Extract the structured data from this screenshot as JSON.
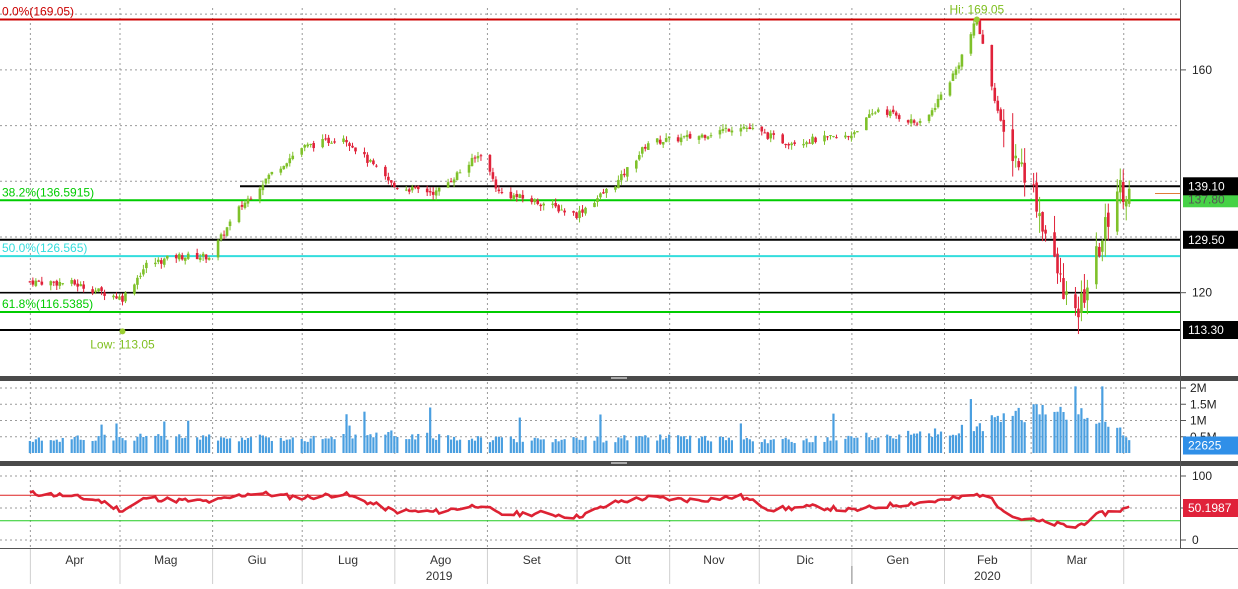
{
  "chart_data": [
    {
      "type": "candlestick",
      "name": "price",
      "x_labels": [
        "Apr",
        "Mag",
        "Giu",
        "Lug",
        "Ago",
        "Set",
        "Ott",
        "Nov",
        "Dic",
        "Gen",
        "Feb",
        "Mar"
      ],
      "year_labels": [
        "2019",
        "2020"
      ],
      "ylim": [
        110,
        172
      ],
      "y_ticks": [
        120,
        160
      ],
      "high": {
        "label": "Hi: 169.05",
        "value": 169.05
      },
      "low": {
        "label": "Low: 113.05",
        "value": 113.05
      },
      "fib_levels": [
        {
          "label": "0.0%(169.05)",
          "value": 169.05,
          "color": "#cc0000"
        },
        {
          "label": "38.2%(136.5915)",
          "value": 136.5915,
          "color": "#00cc00"
        },
        {
          "label": "50.0%(126.565)",
          "value": 126.565,
          "color": "#33dddd"
        },
        {
          "label": "61.8%(116.5385)",
          "value": 116.5385,
          "color": "#00cc00"
        }
      ],
      "horizontal_lines": [
        {
          "label": "139.10",
          "value": 139.1
        },
        {
          "label": "129.50",
          "value": 129.5
        },
        {
          "label": "113.30",
          "value": 113.3
        }
      ],
      "hidden_price_label": "137.80",
      "close_trend": [
        {
          "x": "2019-04-01",
          "y": 122
        },
        {
          "x": "2019-04-15",
          "y": 121.7
        },
        {
          "x": "2019-05-02",
          "y": 119
        },
        {
          "x": "2019-05-10",
          "y": 125
        },
        {
          "x": "2019-05-20",
          "y": 126.5
        },
        {
          "x": "2019-05-31",
          "y": 126.5
        },
        {
          "x": "2019-06-10",
          "y": 135
        },
        {
          "x": "2019-06-20",
          "y": 141
        },
        {
          "x": "2019-07-01",
          "y": 146
        },
        {
          "x": "2019-07-15",
          "y": 148
        },
        {
          "x": "2019-08-01",
          "y": 139
        },
        {
          "x": "2019-08-15",
          "y": 138
        },
        {
          "x": "2019-08-30",
          "y": 145
        },
        {
          "x": "2019-09-05",
          "y": 138
        },
        {
          "x": "2019-09-20",
          "y": 136
        },
        {
          "x": "2019-10-01",
          "y": 134
        },
        {
          "x": "2019-10-15",
          "y": 140
        },
        {
          "x": "2019-10-25",
          "y": 147
        },
        {
          "x": "2019-11-10",
          "y": 148
        },
        {
          "x": "2019-11-25",
          "y": 150
        },
        {
          "x": "2019-12-10",
          "y": 147
        },
        {
          "x": "2019-12-31",
          "y": 148
        },
        {
          "x": "2020-01-10",
          "y": 153
        },
        {
          "x": "2020-01-25",
          "y": 150
        },
        {
          "x": "2020-02-05",
          "y": 160
        },
        {
          "x": "2020-02-12",
          "y": 169
        },
        {
          "x": "2020-02-21",
          "y": 148
        },
        {
          "x": "2020-03-01",
          "y": 140
        },
        {
          "x": "2020-03-09",
          "y": 125
        },
        {
          "x": "2020-03-16",
          "y": 115
        },
        {
          "x": "2020-03-24",
          "y": 128
        },
        {
          "x": "2020-03-30",
          "y": 139
        },
        {
          "x": "2020-04-03",
          "y": 138
        }
      ]
    },
    {
      "type": "bar",
      "name": "volume",
      "y_ticks": [
        {
          "label": "0.5M",
          "value": 500000
        },
        {
          "label": "1M",
          "value": 1000000
        },
        {
          "label": "1.5M",
          "value": 1500000
        },
        {
          "label": "2M",
          "value": 2000000
        }
      ],
      "ylim": [
        0,
        2200000
      ],
      "last_value_label": "22625",
      "last_value_color": "#2f8fe8",
      "bar_color": "#4a9fe0",
      "level_trend": [
        {
          "x": "2019-04-01",
          "y": 380000
        },
        {
          "x": "2019-05-01",
          "y": 500000
        },
        {
          "x": "2019-06-01",
          "y": 470000
        },
        {
          "x": "2019-07-01",
          "y": 450000
        },
        {
          "x": "2019-08-01",
          "y": 560000
        },
        {
          "x": "2019-09-01",
          "y": 440000
        },
        {
          "x": "2019-10-01",
          "y": 420000
        },
        {
          "x": "2019-11-01",
          "y": 470000
        },
        {
          "x": "2019-12-01",
          "y": 360000
        },
        {
          "x": "2020-01-01",
          "y": 480000
        },
        {
          "x": "2020-02-01",
          "y": 620000
        },
        {
          "x": "2020-02-20",
          "y": 1000000
        },
        {
          "x": "2020-03-05",
          "y": 1400000
        },
        {
          "x": "2020-03-20",
          "y": 1300000
        },
        {
          "x": "2020-04-03",
          "y": 500000
        }
      ]
    },
    {
      "type": "line",
      "name": "RSI",
      "y_ticks": [
        0,
        50,
        100
      ],
      "ylim": [
        -5,
        110
      ],
      "ref_lines": [
        {
          "value": 70,
          "color": "#dd2222"
        },
        {
          "value": 30,
          "color": "#22cc22"
        }
      ],
      "last_value_label": "50.1987",
      "line_color": "#dd2233",
      "values": [
        {
          "x": "2019-04-01",
          "y": 73
        },
        {
          "x": "2019-04-12",
          "y": 70
        },
        {
          "x": "2019-04-24",
          "y": 62
        },
        {
          "x": "2019-05-02",
          "y": 46
        },
        {
          "x": "2019-05-10",
          "y": 66
        },
        {
          "x": "2019-05-20",
          "y": 62
        },
        {
          "x": "2019-06-01",
          "y": 60
        },
        {
          "x": "2019-06-15",
          "y": 74
        },
        {
          "x": "2019-07-01",
          "y": 66
        },
        {
          "x": "2019-07-15",
          "y": 72
        },
        {
          "x": "2019-08-01",
          "y": 45
        },
        {
          "x": "2019-08-15",
          "y": 44
        },
        {
          "x": "2019-08-30",
          "y": 55
        },
        {
          "x": "2019-09-05",
          "y": 40
        },
        {
          "x": "2019-09-20",
          "y": 42
        },
        {
          "x": "2019-10-01",
          "y": 36
        },
        {
          "x": "2019-10-15",
          "y": 60
        },
        {
          "x": "2019-10-25",
          "y": 66
        },
        {
          "x": "2019-11-10",
          "y": 62
        },
        {
          "x": "2019-11-25",
          "y": 68
        },
        {
          "x": "2019-12-05",
          "y": 48
        },
        {
          "x": "2019-12-20",
          "y": 52
        },
        {
          "x": "2020-01-01",
          "y": 46
        },
        {
          "x": "2020-01-15",
          "y": 55
        },
        {
          "x": "2020-02-01",
          "y": 62
        },
        {
          "x": "2020-02-14",
          "y": 72
        },
        {
          "x": "2020-02-25",
          "y": 35
        },
        {
          "x": "2020-03-05",
          "y": 28
        },
        {
          "x": "2020-03-16",
          "y": 20
        },
        {
          "x": "2020-03-24",
          "y": 40
        },
        {
          "x": "2020-04-03",
          "y": 50
        }
      ]
    }
  ]
}
